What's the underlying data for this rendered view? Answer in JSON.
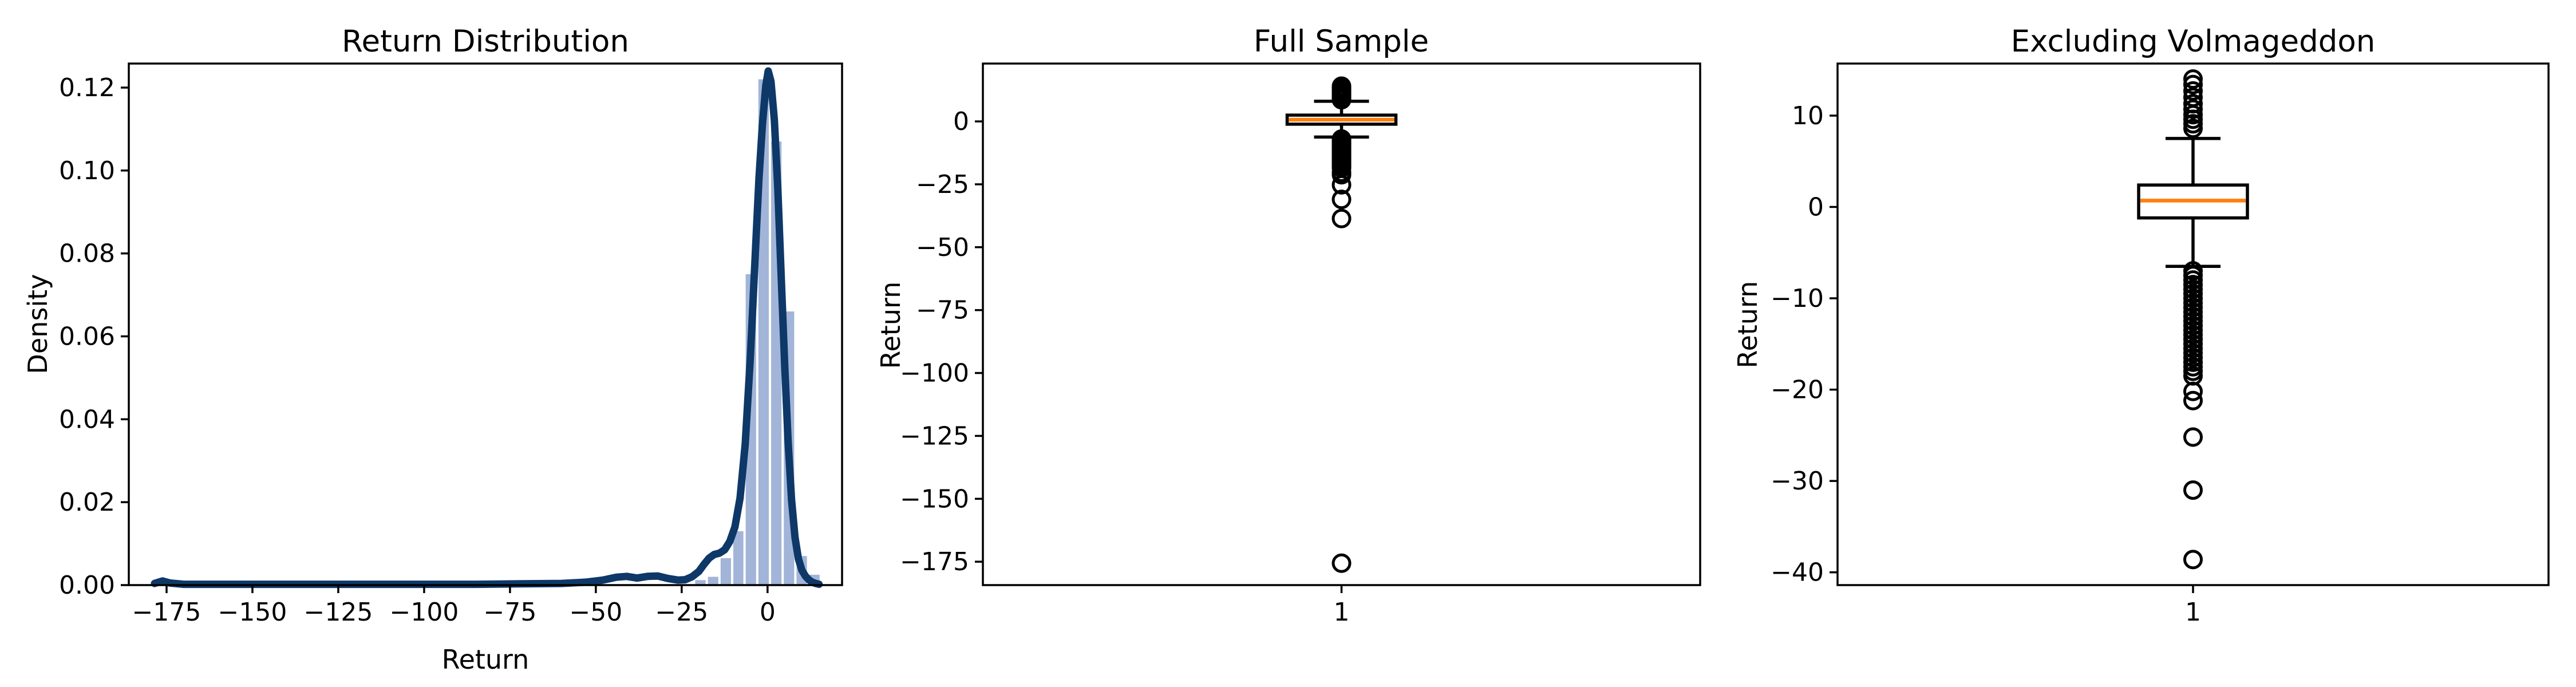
{
  "figure": {
    "background": "#ffffff",
    "spine_color": "#000000",
    "kde_color": "#0d3868",
    "bar_fill": "#a2b5d8",
    "median_color": "#ff7f0e",
    "outline_color": "#000000"
  },
  "chart_data": [
    {
      "id": "hist",
      "type": "histogram_with_kde",
      "title": "Return Distribution",
      "xlabel": "Return",
      "ylabel": "Density",
      "xlim": [
        -186,
        21.7
      ],
      "ylim": [
        0,
        0.1258
      ],
      "grid": false,
      "xticks": [
        {
          "v": -175,
          "label": "−175"
        },
        {
          "v": -150,
          "label": "−150"
        },
        {
          "v": -125,
          "label": "−125"
        },
        {
          "v": -100,
          "label": "−100"
        },
        {
          "v": -75,
          "label": "−75"
        },
        {
          "v": -50,
          "label": "−50"
        },
        {
          "v": -25,
          "label": "−25"
        },
        {
          "v": 0,
          "label": "0"
        }
      ],
      "yticks": [
        {
          "v": 0.0,
          "label": "0.00"
        },
        {
          "v": 0.02,
          "label": "0.02"
        },
        {
          "v": 0.04,
          "label": "0.04"
        },
        {
          "v": 0.06,
          "label": "0.06"
        },
        {
          "v": 0.08,
          "label": "0.08"
        },
        {
          "v": 0.1,
          "label": "0.10"
        },
        {
          "v": 0.12,
          "label": "0.12"
        }
      ],
      "bars": [
        {
          "x0": -177.5,
          "x1": -173.8,
          "h": 0.0004
        },
        {
          "x0": -21.4,
          "x1": -17.7,
          "h": 0.0012
        },
        {
          "x0": -17.7,
          "x1": -14.0,
          "h": 0.002
        },
        {
          "x0": -14.0,
          "x1": -10.3,
          "h": 0.0065
        },
        {
          "x0": -10.3,
          "x1": -6.7,
          "h": 0.013
        },
        {
          "x0": -6.7,
          "x1": -3.0,
          "h": 0.075
        },
        {
          "x0": -3.0,
          "x1": 0.7,
          "h": 0.122
        },
        {
          "x0": 0.7,
          "x1": 4.4,
          "h": 0.107
        },
        {
          "x0": 4.4,
          "x1": 8.1,
          "h": 0.066
        },
        {
          "x0": 8.1,
          "x1": 11.8,
          "h": 0.007
        },
        {
          "x0": 11.8,
          "x1": 15.5,
          "h": 0.0025
        }
      ],
      "kde": [
        [
          -178.5,
          0.0004
        ],
        [
          -176.2,
          0.001
        ],
        [
          -174,
          0.0005
        ],
        [
          -170,
          0.0002
        ],
        [
          -160,
          0.0002
        ],
        [
          -145,
          0.0002
        ],
        [
          -130,
          0.0002
        ],
        [
          -115,
          0.0002
        ],
        [
          -100,
          0.0002
        ],
        [
          -85,
          0.0002
        ],
        [
          -72,
          0.0003
        ],
        [
          -60,
          0.0004
        ],
        [
          -53,
          0.0007
        ],
        [
          -48,
          0.0012
        ],
        [
          -44,
          0.0019
        ],
        [
          -41,
          0.0021
        ],
        [
          -38,
          0.0017
        ],
        [
          -35,
          0.0021
        ],
        [
          -32,
          0.0022
        ],
        [
          -29,
          0.0016
        ],
        [
          -26,
          0.0012
        ],
        [
          -24,
          0.0013
        ],
        [
          -22,
          0.002
        ],
        [
          -20,
          0.0033
        ],
        [
          -18.5,
          0.005
        ],
        [
          -17,
          0.0065
        ],
        [
          -15.5,
          0.0074
        ],
        [
          -14,
          0.0077
        ],
        [
          -12.5,
          0.0085
        ],
        [
          -11,
          0.0105
        ],
        [
          -9.5,
          0.014
        ],
        [
          -8,
          0.021
        ],
        [
          -6.5,
          0.034
        ],
        [
          -5,
          0.055
        ],
        [
          -3.5,
          0.081
        ],
        [
          -2.5,
          0.098
        ],
        [
          -1.5,
          0.111
        ],
        [
          -0.5,
          0.1205
        ],
        [
          0.2,
          0.124
        ],
        [
          1,
          0.1215
        ],
        [
          2,
          0.112
        ],
        [
          3,
          0.0955
        ],
        [
          4,
          0.074
        ],
        [
          5,
          0.053
        ],
        [
          6,
          0.0345
        ],
        [
          7,
          0.0205
        ],
        [
          8,
          0.0115
        ],
        [
          9,
          0.0063
        ],
        [
          10,
          0.0036
        ],
        [
          11,
          0.0022
        ],
        [
          12,
          0.0013
        ],
        [
          13,
          0.0007
        ],
        [
          14,
          0.0004
        ],
        [
          15,
          0.0002
        ]
      ]
    },
    {
      "id": "full",
      "type": "box",
      "title": "Full Sample",
      "ylabel": "Return",
      "xticklabel": "1",
      "ylim": [
        -184.3,
        23.0
      ],
      "grid": false,
      "yticks": [
        {
          "v": 0,
          "label": "0"
        },
        {
          "v": -25,
          "label": "−25"
        },
        {
          "v": -50,
          "label": "−50"
        },
        {
          "v": -75,
          "label": "−75"
        },
        {
          "v": -100,
          "label": "−100"
        },
        {
          "v": -125,
          "label": "−125"
        },
        {
          "v": -150,
          "label": "−150"
        },
        {
          "v": -175,
          "label": "−175"
        }
      ],
      "box": {
        "q1": -1.1,
        "median": 0.7,
        "q3": 2.5,
        "whisker_low": -6.2,
        "whisker_high": 8.0
      },
      "outliers_high": [
        8.6,
        9.1,
        9.6,
        10.1,
        10.7,
        11.3,
        12.0,
        12.7,
        13.4,
        14.0
      ],
      "outliers_low": [
        -7.0,
        -7.5,
        -8.0,
        -8.5,
        -9.0,
        -9.5,
        -10.0,
        -10.5,
        -11.0,
        -11.5,
        -12.0,
        -12.5,
        -13.0,
        -13.5,
        -14.0,
        -14.5,
        -15.0,
        -15.5,
        -16.0,
        -16.5,
        -17.0,
        -17.5,
        -18.0,
        -18.5,
        -20.2,
        -21.2,
        -25.2,
        -31.0,
        -38.6,
        -175.6
      ]
    },
    {
      "id": "excl",
      "type": "box",
      "title": "Excluding Volmageddon",
      "ylabel": "Return",
      "xticklabel": "1",
      "ylim": [
        -41.4,
        15.7
      ],
      "grid": false,
      "yticks": [
        {
          "v": 10,
          "label": "10"
        },
        {
          "v": 0,
          "label": "0"
        },
        {
          "v": -10,
          "label": "−10"
        },
        {
          "v": -20,
          "label": "−20"
        },
        {
          "v": -30,
          "label": "−30"
        },
        {
          "v": -40,
          "label": "−40"
        }
      ],
      "box": {
        "q1": -1.2,
        "median": 0.7,
        "q3": 2.4,
        "whisker_low": -6.5,
        "whisker_high": 7.5
      },
      "outliers_high": [
        8.6,
        9.1,
        9.6,
        10.1,
        10.7,
        11.3,
        12.0,
        12.7,
        13.4,
        14.0
      ],
      "outliers_low": [
        -7.0,
        -7.5,
        -8.0,
        -8.5,
        -9.0,
        -9.5,
        -10.0,
        -10.5,
        -11.0,
        -11.5,
        -12.0,
        -12.5,
        -13.0,
        -13.5,
        -14.0,
        -14.5,
        -15.0,
        -15.5,
        -16.0,
        -16.5,
        -17.0,
        -17.5,
        -18.0,
        -18.5,
        -20.2,
        -21.2,
        -25.2,
        -31.0,
        -38.6
      ]
    }
  ]
}
